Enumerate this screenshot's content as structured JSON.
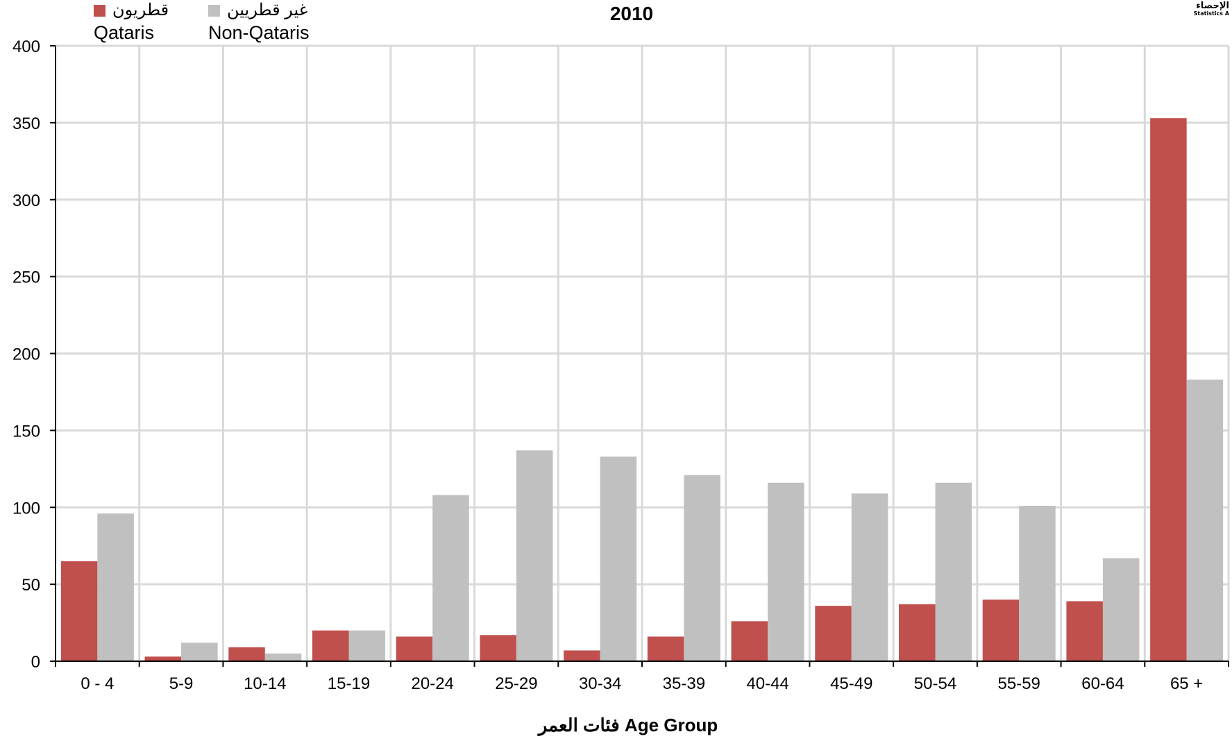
{
  "legend": {
    "qataris_ar": "قطريون",
    "qataris_en": "Qataris",
    "nonqataris_ar": "غير قطريين",
    "nonqataris_en": "Non-Qataris"
  },
  "logo": {
    "ar": "الإحصاء",
    "en": "Statistics A"
  },
  "colors": {
    "qataris": "#c0504d",
    "non_qataris": "#c0c0c0",
    "grid": "#d9d9d9"
  },
  "chart_data": {
    "type": "bar",
    "title": "2010",
    "xlabel": "فئات العمر Age Group",
    "ylabel": "",
    "ylim": [
      0,
      400
    ],
    "yticks": [
      0,
      50,
      100,
      150,
      200,
      250,
      300,
      350,
      400
    ],
    "grid": true,
    "legend_position": "top-left",
    "categories": [
      "0 - 4",
      "5-9",
      "10-14",
      "15-19",
      "20-24",
      "25-29",
      "30-34",
      "35-39",
      "40-44",
      "45-49",
      "50-54",
      "55-59",
      "60-64",
      "65 +"
    ],
    "series": [
      {
        "name": "Qataris",
        "values": [
          65,
          3,
          9,
          20,
          16,
          17,
          7,
          16,
          26,
          36,
          37,
          40,
          39,
          353
        ]
      },
      {
        "name": "Non-Qataris",
        "values": [
          96,
          12,
          5,
          20,
          108,
          137,
          133,
          121,
          116,
          109,
          116,
          101,
          67,
          183
        ]
      }
    ]
  }
}
